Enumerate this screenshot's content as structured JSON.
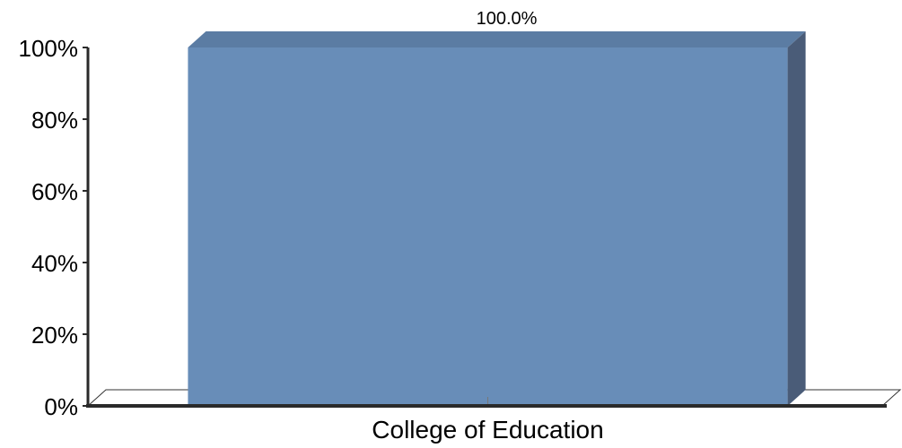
{
  "chart_data": {
    "type": "bar",
    "categories": [
      "College of Education"
    ],
    "series": [
      {
        "values": [
          100.0
        ]
      }
    ],
    "data_labels": [
      "100.0%"
    ],
    "ylim": [
      0,
      100
    ],
    "yticks": [
      0,
      20,
      40,
      60,
      80,
      100
    ],
    "ytick_labels": [
      "0%",
      "20%",
      "40%",
      "60%",
      "80%",
      "100%"
    ],
    "grid": false,
    "legend": "none",
    "style": "3d",
    "colors": {
      "bar_front": "#688DB8",
      "bar_top": "#5B7CA3",
      "bar_side": "#4A5C78",
      "axis": "#2a2a2a"
    }
  }
}
